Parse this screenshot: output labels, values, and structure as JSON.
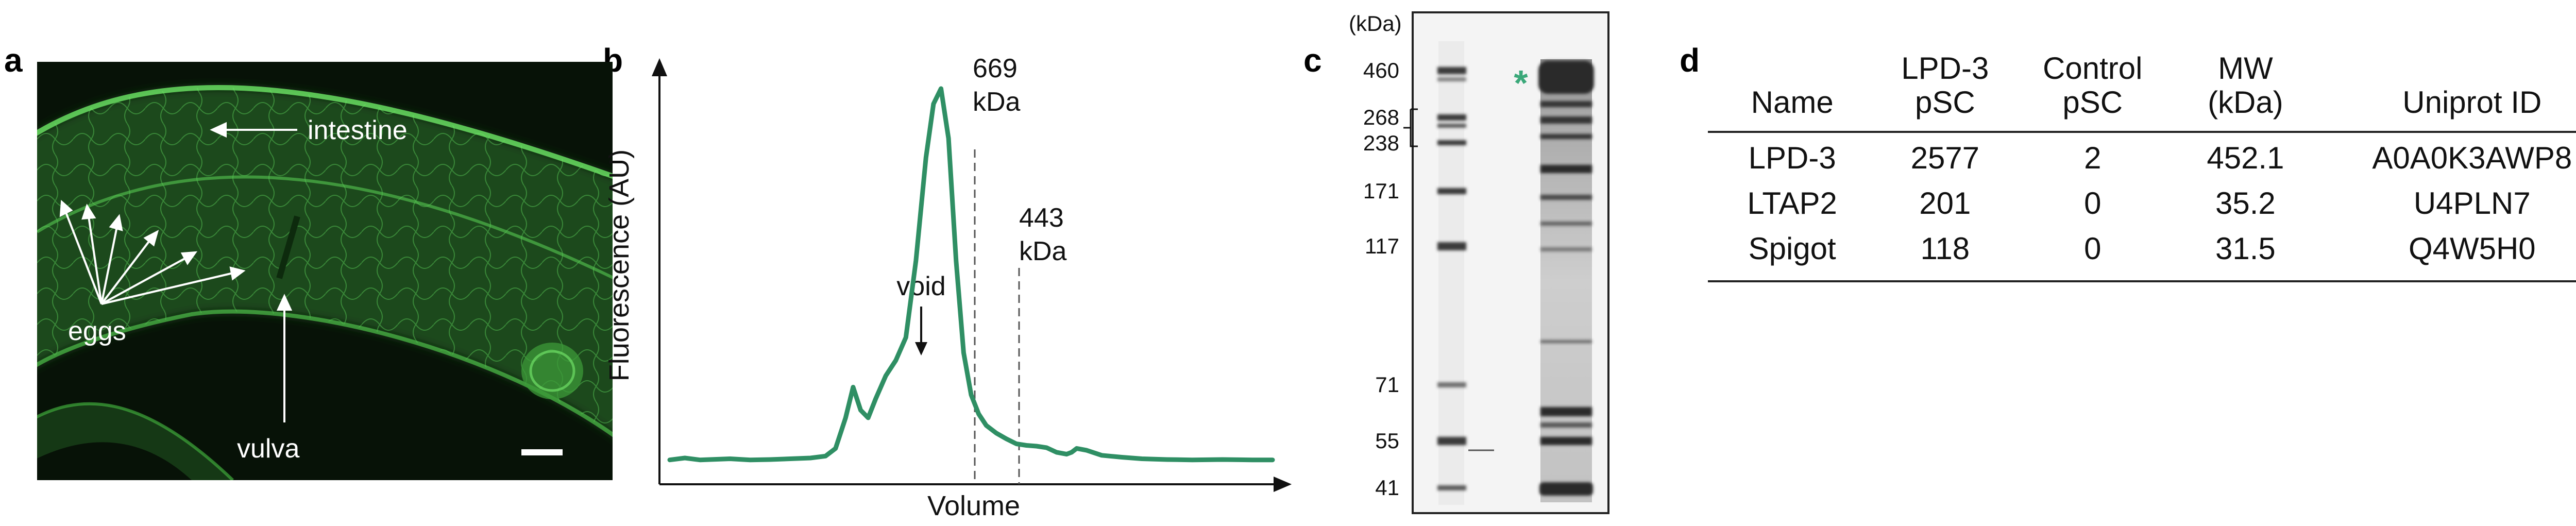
{
  "panel_a": {
    "letter": "a",
    "labels": {
      "intestine": "intestine",
      "eggs": "eggs",
      "vulva": "vulva"
    }
  },
  "panel_b": {
    "letter": "b",
    "chart_data": {
      "type": "line",
      "xlabel": "Volume",
      "ylabel": "Fluorescence (AU)",
      "markers": [
        {
          "label_line1": "669",
          "label_line2": "kDa"
        },
        {
          "label_line1": "443",
          "label_line2": "kDa"
        }
      ],
      "annotations": [
        "void"
      ],
      "series": [
        {
          "x": [
            0,
            30,
            60,
            100,
            120,
            160,
            200,
            240,
            280,
            310,
            330,
            350,
            365,
            380,
            395,
            410,
            430,
            450,
            470,
            490,
            510,
            525,
            540,
            555,
            570,
            585,
            600,
            615,
            630,
            650,
            670,
            690,
            710,
            730,
            750,
            770,
            790,
            800,
            810,
            830,
            860,
            900,
            940,
            990,
            1040,
            1100,
            1160,
            1200
          ],
          "y": [
            0.03,
            0.035,
            0.03,
            0.032,
            0.033,
            0.03,
            0.031,
            0.033,
            0.035,
            0.04,
            0.06,
            0.14,
            0.22,
            0.16,
            0.14,
            0.19,
            0.25,
            0.29,
            0.35,
            0.55,
            0.82,
            0.96,
            1.0,
            0.87,
            0.55,
            0.31,
            0.2,
            0.15,
            0.12,
            0.1,
            0.085,
            0.072,
            0.068,
            0.066,
            0.062,
            0.05,
            0.045,
            0.05,
            0.06,
            0.055,
            0.042,
            0.037,
            0.033,
            0.031,
            0.03,
            0.031,
            0.03,
            0.03
          ]
        }
      ]
    }
  },
  "panel_c": {
    "letter": "c",
    "unit": "(kDa)",
    "ladder": [
      "460",
      "268",
      "238",
      "171",
      "117",
      "71",
      "55",
      "41"
    ],
    "asterisk": "*",
    "colors": {
      "asterisk": "#3aa879"
    }
  },
  "panel_d": {
    "letter": "d",
    "headers": [
      "Name",
      "LPD-3\npSC",
      "Control\npSC",
      "MW\n(kDa)",
      "Uniprot ID"
    ],
    "rows": [
      [
        "LPD-3",
        "2577",
        "2",
        "452.1",
        "A0A0K3AWP8"
      ],
      [
        "LTAP2",
        "201",
        "0",
        "35.2",
        "U4PLN7"
      ],
      [
        "Spigot",
        "118",
        "0",
        "31.5",
        "Q4W5H0"
      ]
    ]
  },
  "colors": {
    "trace": "#2f8f64",
    "fluor": "#4fbf4a"
  }
}
